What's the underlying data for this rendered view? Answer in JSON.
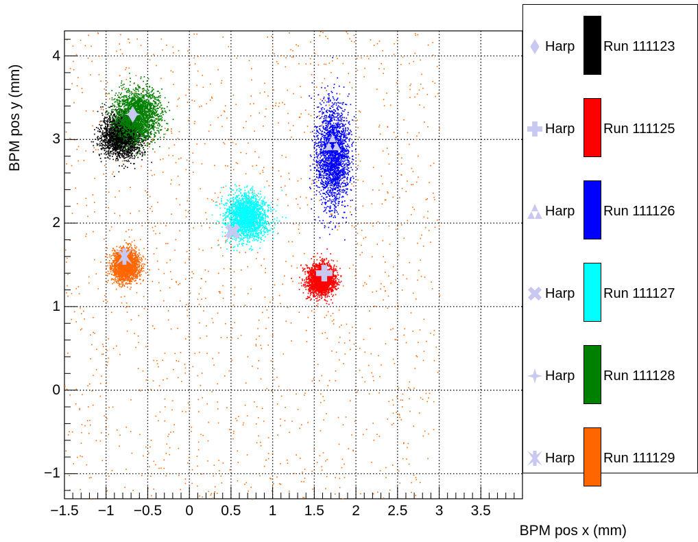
{
  "chart_data": {
    "type": "scatter",
    "title": "",
    "xlabel": "BPM pos x (mm)",
    "ylabel": "BPM pos y (mm)",
    "xlim": [
      -1.5,
      4.0
    ],
    "ylim": [
      -1.3,
      4.3
    ],
    "x_ticks": [
      -1.5,
      -1,
      -0.5,
      0,
      0.5,
      1,
      1.5,
      2,
      2.5,
      3,
      3.5
    ],
    "x_tick_labels": [
      "−1.5",
      "−1",
      "−0.5",
      "0",
      "0.5",
      "1",
      "1.5",
      "2",
      "2.5",
      "3",
      "3.5"
    ],
    "y_ticks": [
      -1,
      0,
      1,
      2,
      3,
      4
    ],
    "y_tick_labels": [
      "−1",
      "0",
      "1",
      "2",
      "3",
      "4"
    ],
    "grid": true,
    "legend_position": "right",
    "series": [
      {
        "name": "Run 111123",
        "color": "#000000",
        "center": [
          -0.82,
          3.05
        ],
        "spread": [
          0.12,
          0.13
        ],
        "harp": [
          -0.68,
          3.3
        ],
        "harp_marker": "diamond"
      },
      {
        "name": "Run 111125",
        "color": "#ff0000",
        "center": [
          1.58,
          1.33
        ],
        "spread": [
          0.08,
          0.09
        ],
        "harp": [
          1.62,
          1.4
        ],
        "harp_marker": "cross"
      },
      {
        "name": "Run 111126",
        "color": "#0000ff",
        "center": [
          1.72,
          2.82
        ],
        "spread": [
          0.1,
          0.3
        ],
        "harp": [
          1.72,
          2.97
        ],
        "harp_marker": "triple-triangle"
      },
      {
        "name": "Run 111127",
        "color": "#00ffff",
        "center": [
          0.68,
          2.08
        ],
        "spread": [
          0.12,
          0.13
        ],
        "harp": [
          0.52,
          1.9
        ],
        "harp_marker": "x-cross"
      },
      {
        "name": "Run 111128",
        "color": "#008000",
        "center": [
          -0.63,
          3.3
        ],
        "spread": [
          0.13,
          0.15
        ],
        "harp": [
          -0.68,
          3.3
        ],
        "harp_marker": "four-point-star"
      },
      {
        "name": "Run 111129",
        "color": "#ff6600",
        "center": [
          -0.77,
          1.5
        ],
        "spread": [
          0.08,
          0.09
        ],
        "harp": [
          -0.78,
          1.6
        ],
        "harp_marker": "asterisk-cross",
        "has_background_scatter": true
      }
    ]
  },
  "legend": {
    "harp_label": "Harp",
    "harp_marker_color": "#c8c8f0"
  }
}
